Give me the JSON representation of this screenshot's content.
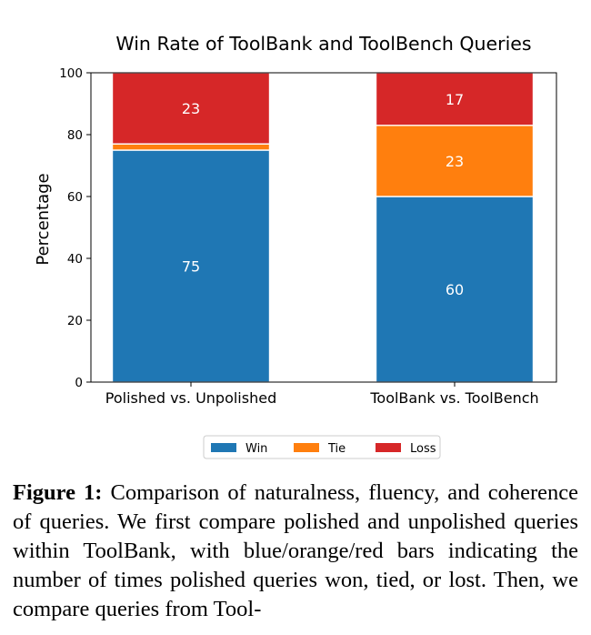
{
  "chart_data": {
    "type": "bar",
    "stacked": true,
    "title": "Win Rate of ToolBank and ToolBench Queries",
    "xlabel": "",
    "ylabel": "Percentage",
    "ylim": [
      0,
      100
    ],
    "yticks": [
      0,
      20,
      40,
      60,
      80,
      100
    ],
    "categories": [
      "Polished vs. Unpolished",
      "ToolBank vs. ToolBench"
    ],
    "series": [
      {
        "name": "Win",
        "color": "#1f77b4",
        "values": [
          75,
          60
        ],
        "labels": [
          "75",
          "60"
        ]
      },
      {
        "name": "Tie",
        "color": "#ff7f0e",
        "values": [
          2,
          23
        ],
        "labels": [
          "",
          "23"
        ]
      },
      {
        "name": "Loss",
        "color": "#d62728",
        "values": [
          23,
          17
        ],
        "labels": [
          "23",
          "17"
        ]
      }
    ],
    "legend": "bottom-center",
    "grid": false
  },
  "caption": {
    "label": "Figure 1:",
    "text": "Comparison of naturalness, fluency, and coherence of queries. We first compare polished and unpolished queries within ToolBank, with blue/orange/red bars indicating the number of times polished queries won, tied, or lost. Then, we compare queries from Tool-"
  }
}
